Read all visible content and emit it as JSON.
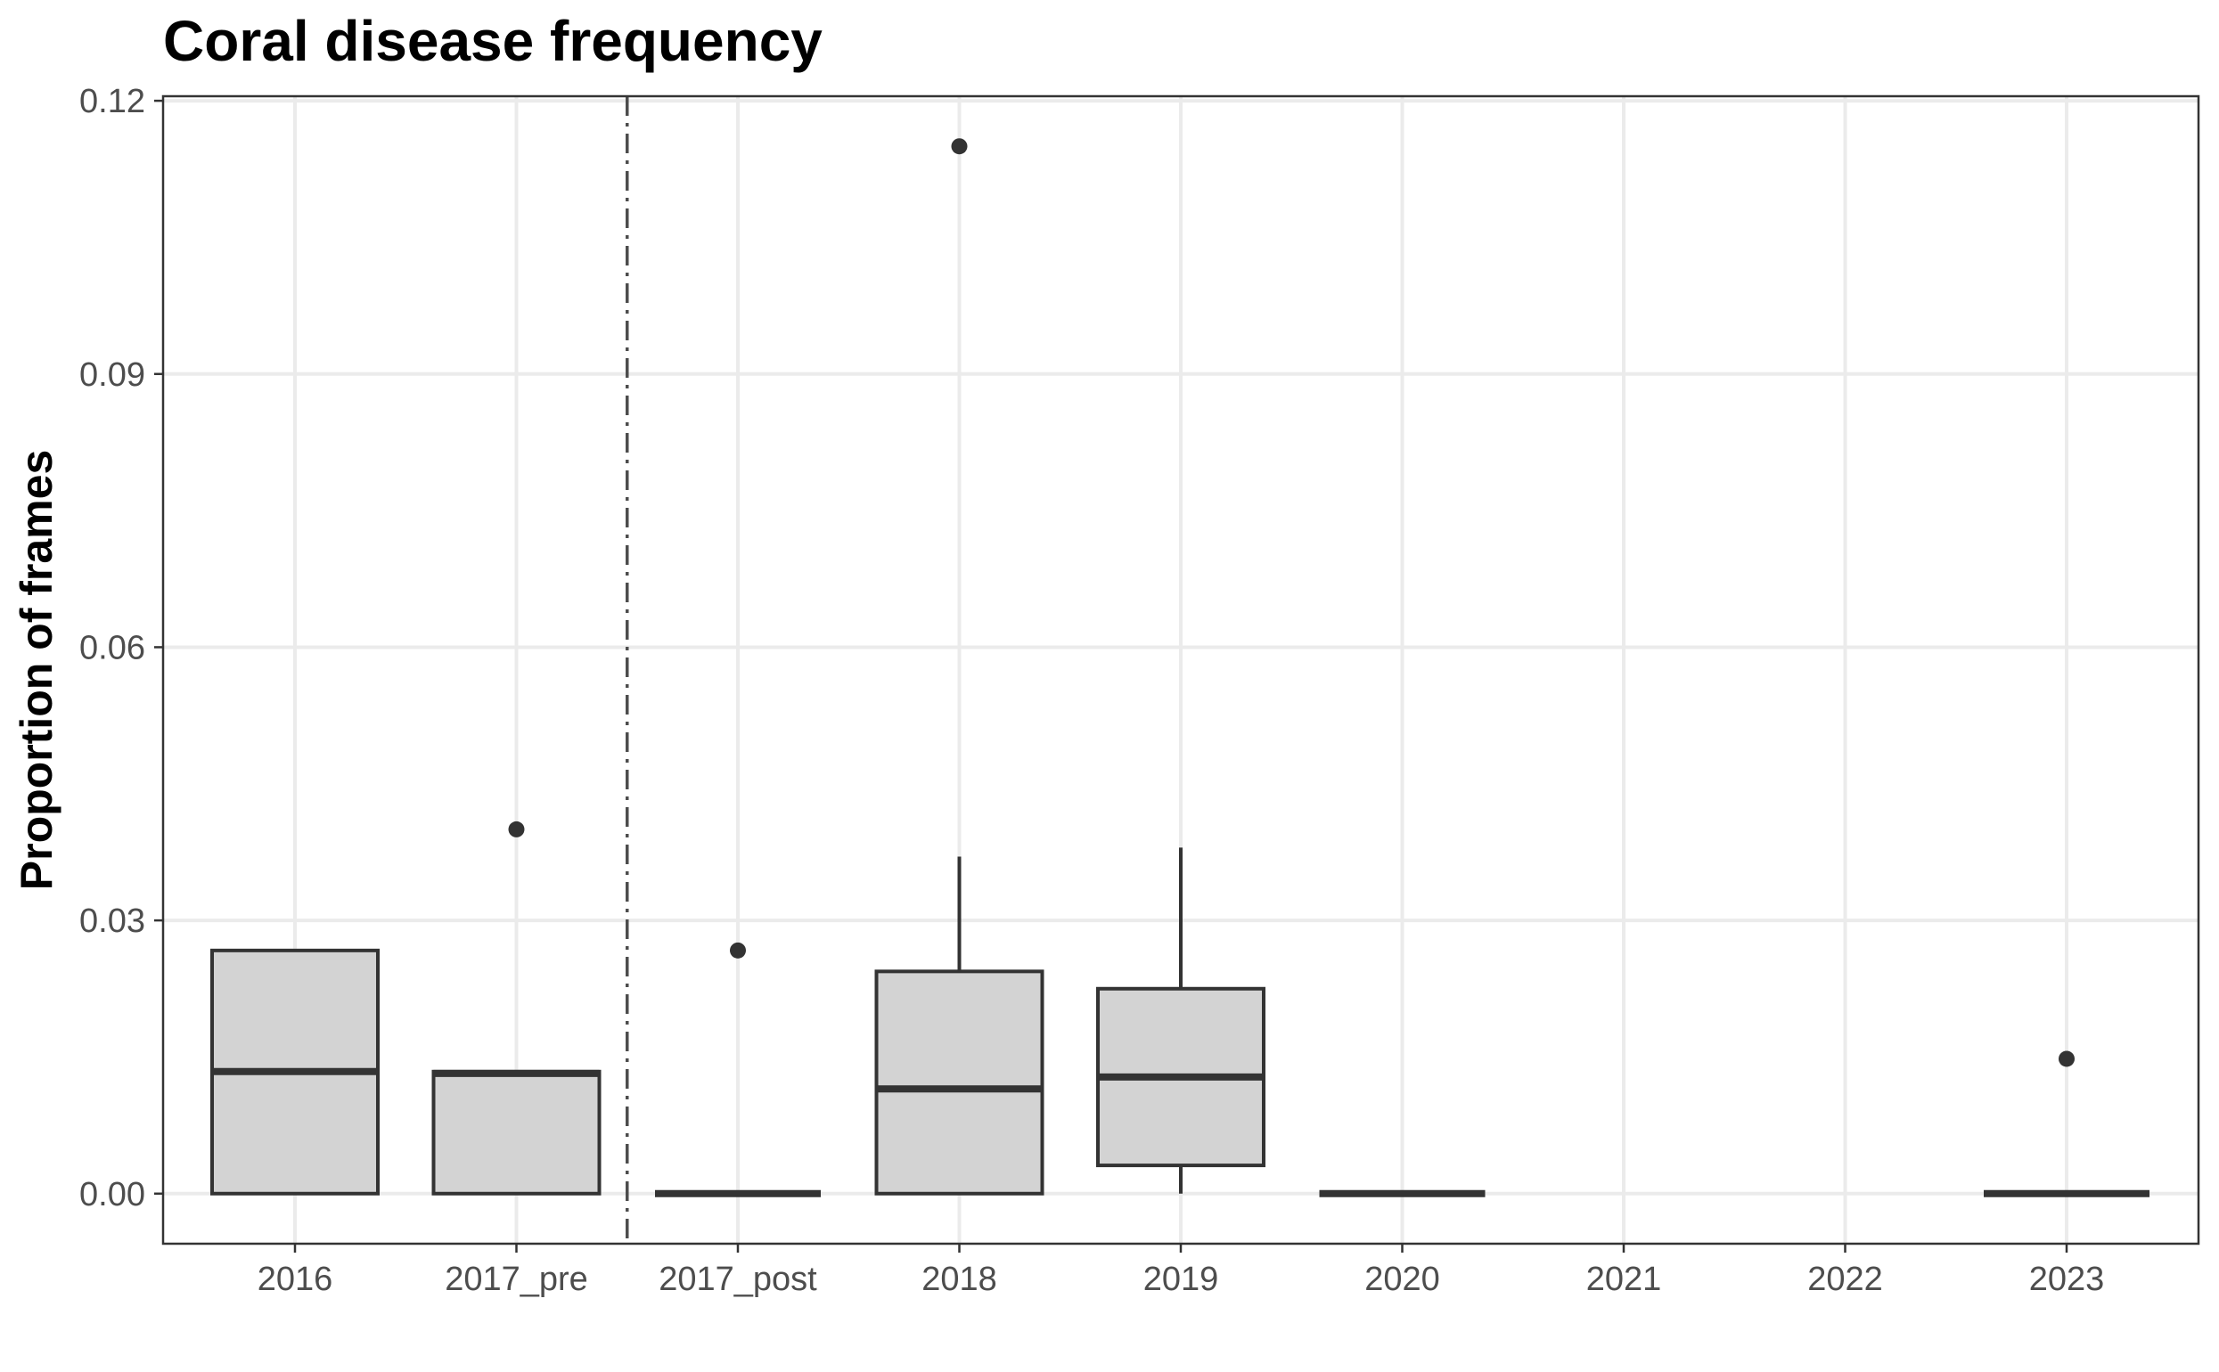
{
  "chart_data": {
    "type": "boxplot",
    "title": "Coral disease frequency",
    "xlabel": "",
    "ylabel": "Proportion of frames",
    "ylim": [
      -0.0055,
      0.1205
    ],
    "yticks": [
      0.0,
      0.03,
      0.06,
      0.09,
      0.12
    ],
    "ytick_labels": [
      "0.00",
      "0.03",
      "0.06",
      "0.09",
      "0.12"
    ],
    "categories": [
      "2016",
      "2017_pre",
      "2017_post",
      "2018",
      "2019",
      "2020",
      "2021",
      "2022",
      "2023"
    ],
    "boxes": [
      {
        "category": "2016",
        "q1": 0.0,
        "median": 0.0134,
        "q3": 0.0267,
        "whisker_low": 0.0,
        "whisker_high": 0.0267,
        "outliers": []
      },
      {
        "category": "2017_pre",
        "q1": 0.0,
        "median": 0.0132,
        "q3": 0.0134,
        "whisker_low": 0.0,
        "whisker_high": 0.0134,
        "outliers": [
          0.04
        ]
      },
      {
        "category": "2017_post",
        "q1": 0.0,
        "median": 0.0,
        "q3": 0.0,
        "whisker_low": 0.0,
        "whisker_high": 0.0,
        "outliers": [
          0.0267
        ]
      },
      {
        "category": "2018",
        "q1": 0.0,
        "median": 0.0115,
        "q3": 0.0244,
        "whisker_low": 0.0,
        "whisker_high": 0.037,
        "outliers": [
          0.115
        ]
      },
      {
        "category": "2019",
        "q1": 0.0031,
        "median": 0.0128,
        "q3": 0.0225,
        "whisker_low": 0.0,
        "whisker_high": 0.038,
        "outliers": []
      },
      {
        "category": "2020",
        "q1": 0.0,
        "median": 0.0,
        "q3": 0.0,
        "whisker_low": 0.0,
        "whisker_high": 0.0,
        "outliers": []
      },
      {
        "category": "2023",
        "q1": 0.0,
        "median": 0.0,
        "q3": 0.0,
        "whisker_low": 0.0,
        "whisker_high": 0.0,
        "outliers": [
          0.0148
        ]
      }
    ],
    "reference_line": {
      "type": "vertical",
      "between": [
        "2017_pre",
        "2017_post"
      ],
      "style": "dashdot"
    },
    "grid": true,
    "colors": {
      "box_fill": "#d3d3d3",
      "box_stroke": "#333333",
      "grid": "#ebebeb",
      "reference_line": "#4d4d4d"
    }
  }
}
